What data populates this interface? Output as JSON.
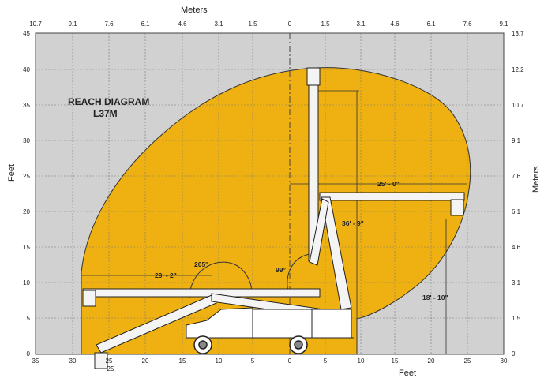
{
  "diagram": {
    "title_line1": "REACH DIAGRAM",
    "title_line2": "L37M",
    "top_axis_title": "Meters",
    "bottom_axis_title": "Feet",
    "left_axis_title": "Feet",
    "right_axis_title": "Meters",
    "top_ticks": [
      "10.7",
      "9.1",
      "7.6",
      "6.1",
      "4.6",
      "3.1",
      "1.5",
      "0",
      "1.5",
      "3.1",
      "4.6",
      "6.1",
      "7.6",
      "9.1"
    ],
    "bottom_ticks": [
      "35",
      "30",
      "25",
      "20",
      "15",
      "10",
      "5",
      "0",
      "5",
      "10",
      "15",
      "20",
      "25",
      "30"
    ],
    "bottom_subtick": "25",
    "left_ticks": [
      "45",
      "40",
      "35",
      "30",
      "25",
      "20",
      "15",
      "10",
      "5",
      "0"
    ],
    "right_ticks": [
      "13.7",
      "12.2",
      "10.7",
      "9.1",
      "7.6",
      "6.1",
      "4.6",
      "3.1",
      "1.5",
      "0"
    ],
    "dim_horizontal_right": "25' - 0\"",
    "dim_vertical_right": "36' - 9\"",
    "dim_horizontal_left": "29' - 2\"",
    "dim_platform_height": "18' - 10\"",
    "angle_left": "205°",
    "angle_right": "99°"
  },
  "colors": {
    "background": "#d1d1d1",
    "envelope": "#eeb111",
    "boom": "#f4f4f4",
    "outline": "#222222"
  }
}
